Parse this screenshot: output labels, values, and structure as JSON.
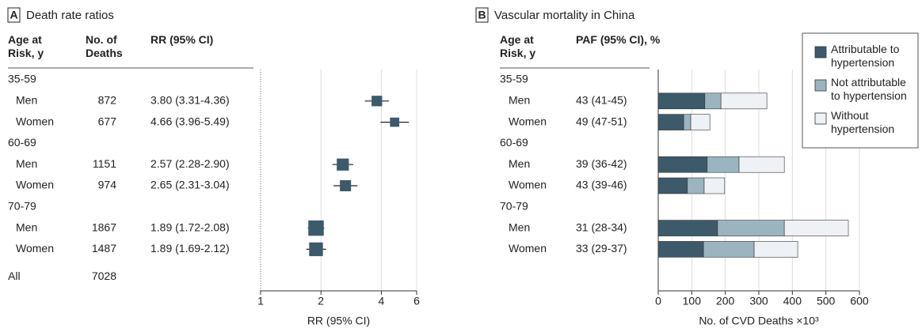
{
  "chart_data": [
    {
      "type": "forest",
      "panel": "A",
      "title": "Death rate ratios",
      "columns": [
        "Age at Risk, y",
        "No. of Deaths",
        "RR (95% CI)"
      ],
      "categories": [
        "35-59",
        "Men",
        "Women",
        "60-69",
        "Men",
        "Women",
        "70-79",
        "Men",
        "Women",
        "All"
      ],
      "deaths": [
        null,
        872,
        677,
        null,
        1151,
        974,
        null,
        1867,
        1487,
        7028
      ],
      "values": [
        null,
        3.8,
        4.66,
        null,
        2.57,
        2.65,
        null,
        1.89,
        1.89,
        null
      ],
      "lower": [
        null,
        3.31,
        3.96,
        null,
        2.28,
        2.31,
        null,
        1.72,
        1.69,
        null
      ],
      "upper": [
        null,
        4.36,
        5.49,
        null,
        2.9,
        3.04,
        null,
        2.08,
        2.12,
        null
      ],
      "value_labels": [
        null,
        "3.80 (3.31-4.36)",
        "4.66 (3.96-5.49)",
        null,
        "2.57 (2.28-2.90)",
        "2.65 (2.31-3.04)",
        null,
        "1.89 (1.72-2.08)",
        "1.89 (1.69-2.12)",
        null
      ],
      "xlabel": "RR (95% CI)",
      "xscale": "log",
      "xlim": [
        1,
        6
      ],
      "xticks": [
        1,
        2,
        4,
        6
      ],
      "grid": true,
      "color": "#3d5a6b"
    },
    {
      "type": "stacked-barh",
      "panel": "B",
      "title": "Vascular mortality in China",
      "columns": [
        "Age at Risk, y",
        "PAF (95% CI), %"
      ],
      "categories": [
        "35-59",
        "Men",
        "Women",
        "60-69",
        "Men",
        "Women",
        "70-79",
        "Men",
        "Women"
      ],
      "paf": [
        null,
        "43 (41-45)",
        "49 (47-51)",
        null,
        "39 (36-42)",
        "43 (39-46)",
        null,
        "31 (28-34)",
        "33 (29-37)"
      ],
      "series": [
        {
          "name": "Attributable to hypertension",
          "color": "#3d5a6b",
          "values": [
            null,
            139,
            76,
            null,
            146,
            87,
            null,
            177,
            135
          ]
        },
        {
          "name": "Not attributable to hypertension",
          "color": "#9bb5c0",
          "values": [
            null,
            48,
            21,
            null,
            95,
            50,
            null,
            199,
            151
          ]
        },
        {
          "name": "Without hypertension",
          "color": "#eef1f5",
          "values": [
            null,
            137,
            57,
            null,
            135,
            61,
            null,
            191,
            130
          ]
        }
      ],
      "xlabel": "No. of CVD Deaths ×10³",
      "xlim": [
        0,
        600
      ],
      "xticks": [
        0,
        100,
        200,
        300,
        400,
        500,
        600
      ],
      "grid": true,
      "legend": "upper right"
    }
  ]
}
